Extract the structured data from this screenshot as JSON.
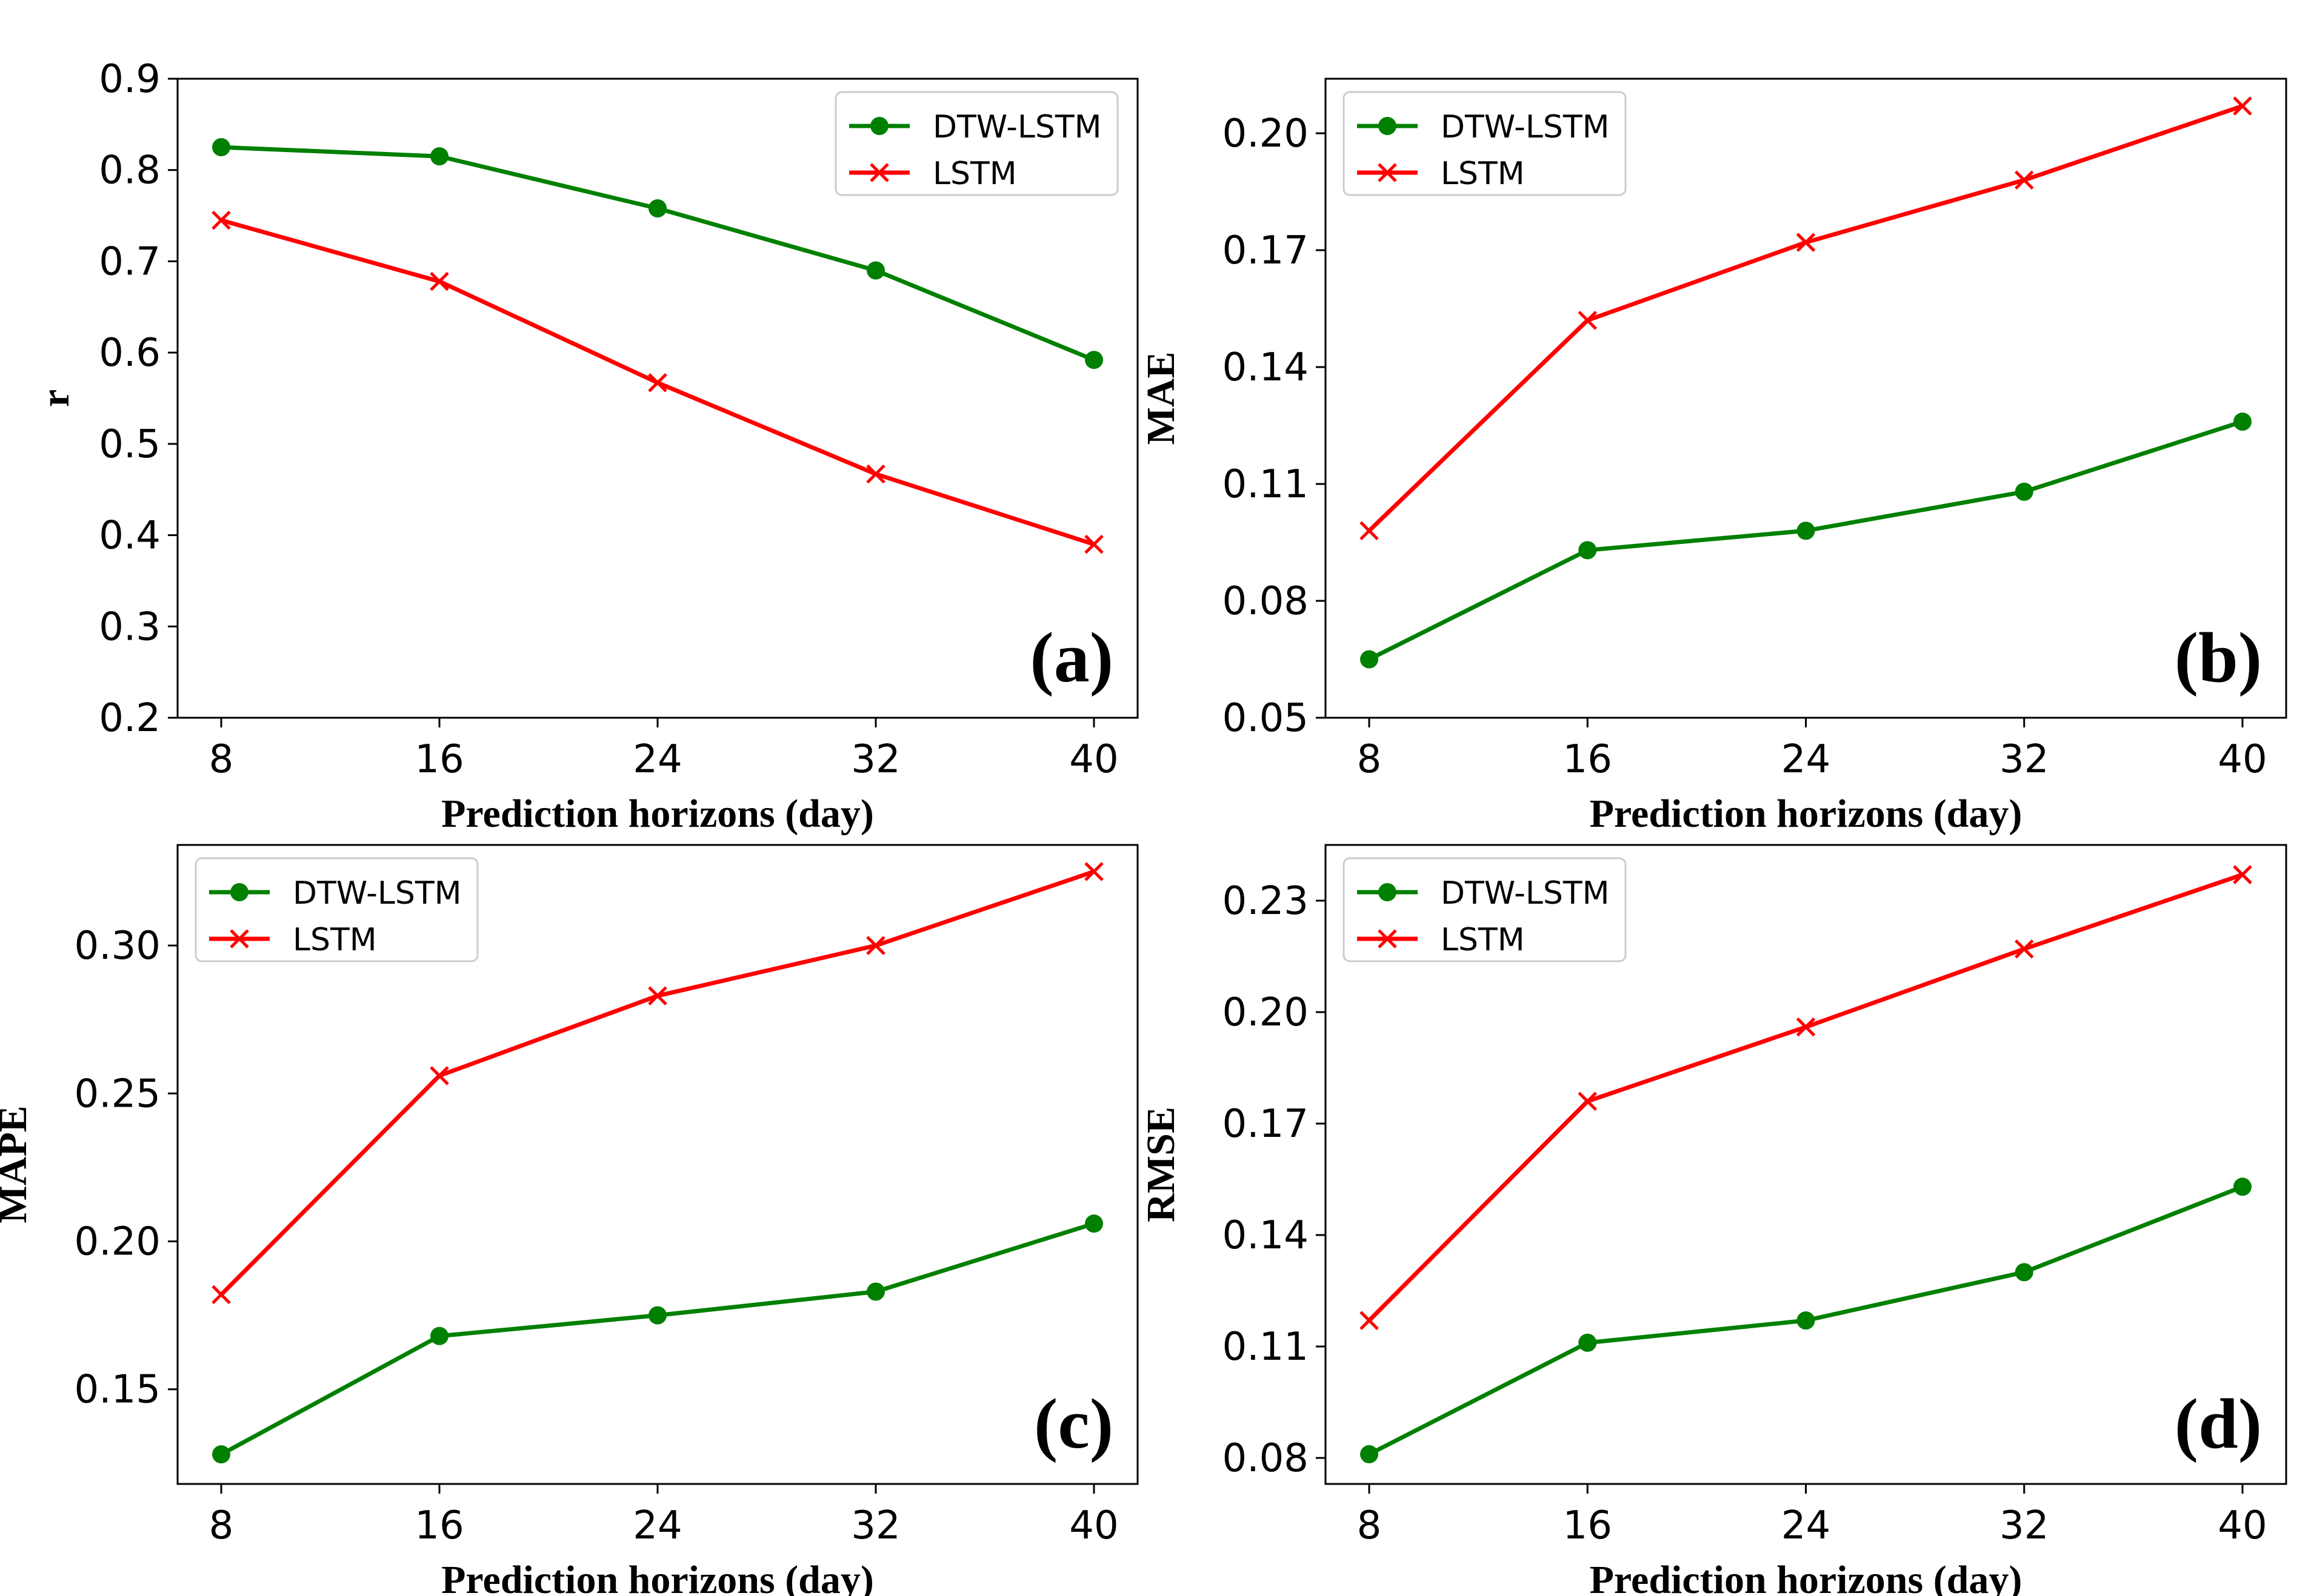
{
  "chart_data": [
    {
      "type": "line",
      "panel_label": "(a)",
      "xlabel": "Prediction horizons (day)",
      "ylabel": "r",
      "x": [
        8,
        16,
        24,
        32,
        40
      ],
      "x_ticks": [
        "8",
        "16",
        "24",
        "32",
        "40"
      ],
      "y_ticks": [
        "0.2",
        "0.3",
        "0.4",
        "0.5",
        "0.6",
        "0.7",
        "0.8",
        "0.9"
      ],
      "ylim": [
        0.2,
        0.9
      ],
      "legend_position": "upper-right",
      "grid": false,
      "series": [
        {
          "name": "DTW-LSTM",
          "color": "#008000",
          "marker": "circle",
          "values": [
            0.825,
            0.815,
            0.758,
            0.69,
            0.592
          ]
        },
        {
          "name": "LSTM",
          "color": "#ff0000",
          "marker": "x",
          "values": [
            0.745,
            0.678,
            0.567,
            0.467,
            0.39
          ]
        }
      ]
    },
    {
      "type": "line",
      "panel_label": "(b)",
      "xlabel": "Prediction horizons (day)",
      "ylabel": "MAE",
      "x": [
        8,
        16,
        24,
        32,
        40
      ],
      "x_ticks": [
        "8",
        "16",
        "24",
        "32",
        "40"
      ],
      "y_ticks": [
        "0.05",
        "0.08",
        "0.11",
        "0.14",
        "0.17",
        "0.20"
      ],
      "ylim": [
        0.05,
        0.214
      ],
      "legend_position": "upper-left",
      "grid": false,
      "series": [
        {
          "name": "DTW-LSTM",
          "color": "#008000",
          "marker": "circle",
          "values": [
            0.065,
            0.093,
            0.098,
            0.108,
            0.126
          ]
        },
        {
          "name": "LSTM",
          "color": "#ff0000",
          "marker": "x",
          "values": [
            0.098,
            0.152,
            0.172,
            0.188,
            0.207
          ]
        }
      ]
    },
    {
      "type": "line",
      "panel_label": "(c)",
      "xlabel": "Prediction horizons (day)",
      "ylabel": "MAPE",
      "x": [
        8,
        16,
        24,
        32,
        40
      ],
      "x_ticks": [
        "8",
        "16",
        "24",
        "32",
        "40"
      ],
      "y_ticks": [
        "0.15",
        "0.20",
        "0.25",
        "0.30"
      ],
      "ylim": [
        0.118,
        0.334
      ],
      "legend_position": "upper-left",
      "grid": false,
      "series": [
        {
          "name": "DTW-LSTM",
          "color": "#008000",
          "marker": "circle",
          "values": [
            0.128,
            0.168,
            0.175,
            0.183,
            0.206
          ]
        },
        {
          "name": "LSTM",
          "color": "#ff0000",
          "marker": "x",
          "values": [
            0.182,
            0.256,
            0.283,
            0.3,
            0.325
          ]
        }
      ]
    },
    {
      "type": "line",
      "panel_label": "(d)",
      "xlabel": "Prediction horizons (day)",
      "ylabel": "RMSE",
      "x": [
        8,
        16,
        24,
        32,
        40
      ],
      "x_ticks": [
        "8",
        "16",
        "24",
        "32",
        "40"
      ],
      "y_ticks": [
        "0.08",
        "0.11",
        "0.14",
        "0.17",
        "0.20",
        "0.23"
      ],
      "ylim": [
        0.073,
        0.245
      ],
      "legend_position": "upper-left",
      "grid": false,
      "series": [
        {
          "name": "DTW-LSTM",
          "color": "#008000",
          "marker": "circle",
          "values": [
            0.081,
            0.111,
            0.117,
            0.13,
            0.153
          ]
        },
        {
          "name": "LSTM",
          "color": "#ff0000",
          "marker": "x",
          "values": [
            0.117,
            0.176,
            0.196,
            0.217,
            0.237
          ]
        }
      ]
    }
  ]
}
